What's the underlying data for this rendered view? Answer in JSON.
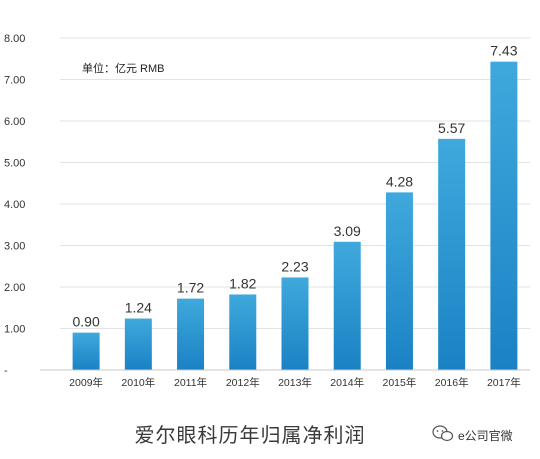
{
  "chart_data": {
    "type": "bar",
    "title": "爱尔眼科历年归属净利润",
    "unit_note": "单位：亿元 RMB",
    "categories": [
      "2009年",
      "2010年",
      "2011年",
      "2012年",
      "2013年",
      "2014年",
      "2015年",
      "2016年",
      "2017年"
    ],
    "values": [
      0.9,
      1.24,
      1.72,
      1.82,
      2.23,
      3.09,
      4.28,
      5.57,
      7.43
    ],
    "value_labels": [
      "0.90",
      "1.24",
      "1.72",
      "1.82",
      "2.23",
      "3.09",
      "4.28",
      "5.57",
      "7.43"
    ],
    "ylim": [
      0,
      8
    ],
    "yticks": [
      0,
      1,
      2,
      3,
      4,
      5,
      6,
      7,
      8
    ],
    "ytick_labels": [
      "-",
      "1.00",
      "2.00",
      "3.00",
      "4.00",
      "5.00",
      "6.00",
      "7.00",
      "8.00"
    ],
    "grid": true,
    "bar_color_top": "#3fa9dd",
    "bar_color_bottom": "#1a82c4"
  },
  "watermark": {
    "text": "e公司官微",
    "icon": "wechat-icon"
  }
}
